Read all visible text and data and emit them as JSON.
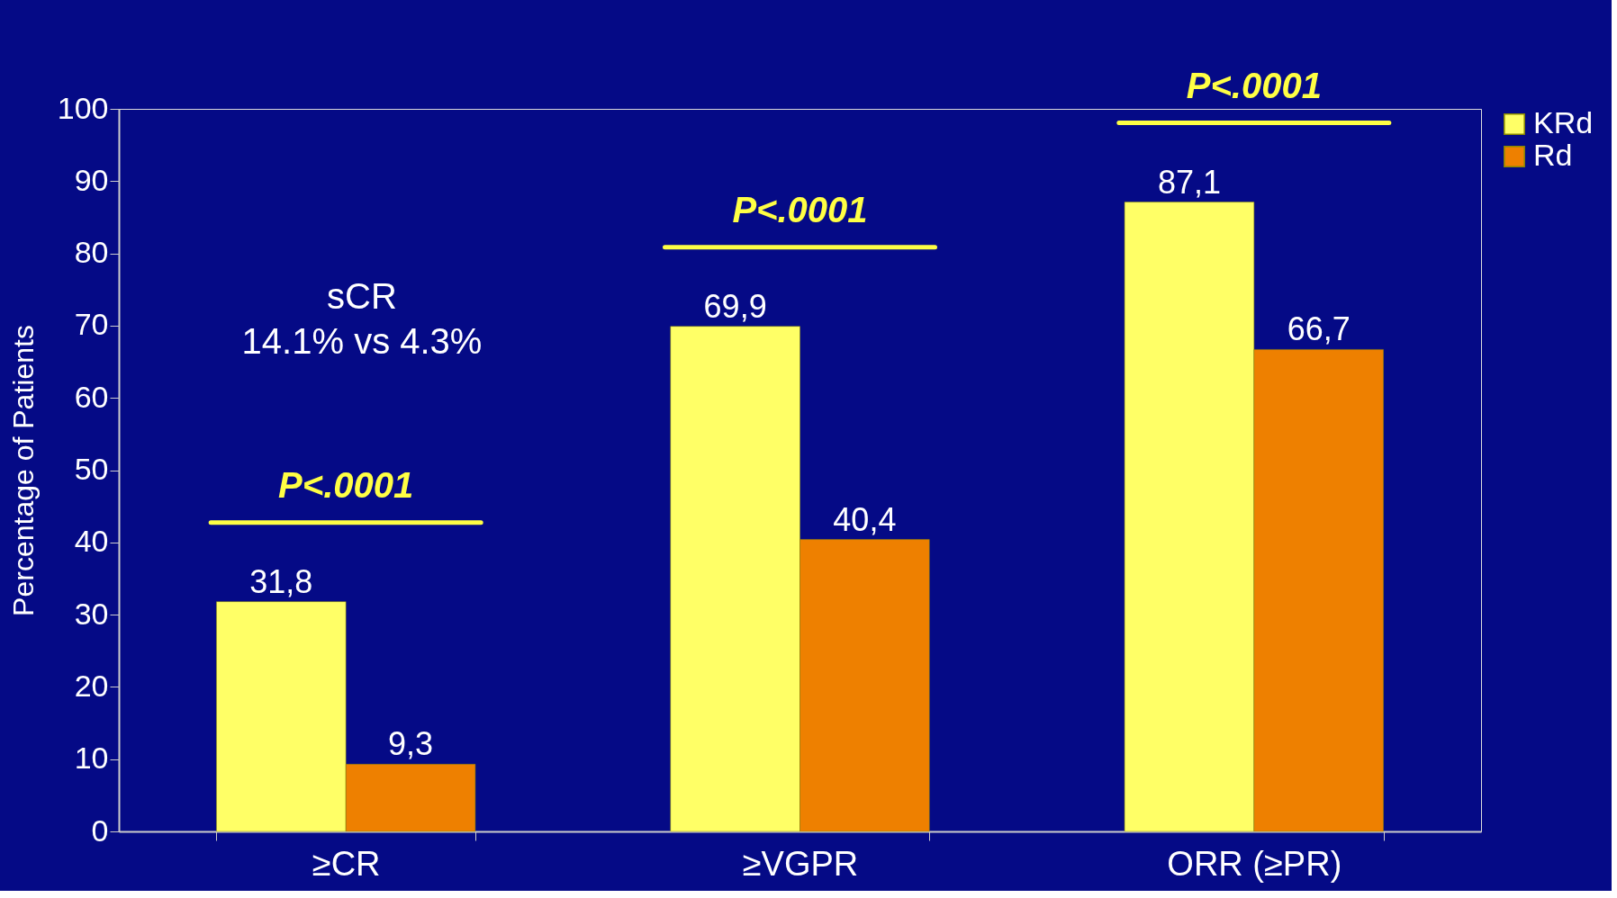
{
  "chart_data": {
    "type": "bar",
    "ylabel": "Percentage of Patients",
    "categories": [
      "≥CR",
      "≥VGPR",
      "ORR (≥PR)"
    ],
    "series": [
      {
        "name": "KRd",
        "color": "#ffff66",
        "values": [
          31.8,
          69.9,
          87.1
        ],
        "value_labels": [
          "31,8",
          "69,9",
          "87,1"
        ]
      },
      {
        "name": "Rd",
        "color": "#ee8000",
        "values": [
          9.3,
          40.4,
          66.7
        ],
        "value_labels": [
          "9,3",
          "40,4",
          "66,7"
        ]
      }
    ],
    "ylim": [
      0,
      100
    ],
    "yticks": [
      0,
      10,
      20,
      30,
      40,
      50,
      60,
      70,
      80,
      90,
      100
    ],
    "annotations": [
      "P<.0001",
      "P<.0001",
      "P<.0001",
      "sCR\n14.1% vs 4.3%"
    ],
    "legend": "right",
    "grid": false
  }
}
